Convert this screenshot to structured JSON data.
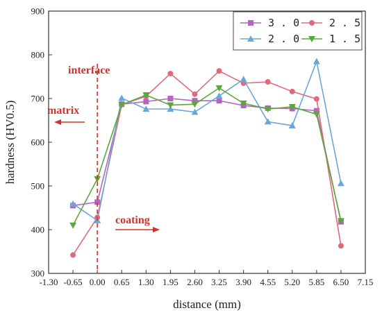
{
  "chart_data": {
    "type": "line",
    "xlabel": "distance (mm)",
    "ylabel": "hardness (HV0.5)",
    "xlim": [
      -1.3,
      7.15
    ],
    "ylim": [
      300,
      900
    ],
    "xticks": [
      -1.3,
      -0.65,
      0.0,
      0.65,
      1.3,
      1.95,
      2.6,
      3.25,
      3.9,
      4.55,
      5.2,
      5.85,
      6.5,
      7.15
    ],
    "xtick_labels": [
      "-1.30",
      "-0.65",
      "0.00",
      "0.65",
      "1.30",
      "1.95",
      "2.60",
      "3.25",
      "3.90",
      "4.55",
      "5.20",
      "5.85",
      "6.50",
      "7.15"
    ],
    "yticks": [
      300,
      400,
      500,
      600,
      700,
      800,
      900
    ],
    "ytick_labels": [
      "300",
      "400",
      "500",
      "600",
      "700",
      "800",
      "900"
    ],
    "x": [
      -0.65,
      0.0,
      0.65,
      1.3,
      1.95,
      2.6,
      3.25,
      3.9,
      4.55,
      5.2,
      5.85,
      6.5
    ],
    "series": [
      {
        "name": "3.0",
        "color": "#b565c0",
        "marker": "square",
        "values": [
          455,
          463,
          687,
          693,
          700,
          695,
          695,
          684,
          678,
          677,
          672,
          418
        ]
      },
      {
        "name": "2.5",
        "color": "#e0697d",
        "marker": "circle",
        "values": [
          342,
          428,
          686,
          705,
          757,
          710,
          763,
          735,
          738,
          716,
          699,
          363
        ]
      },
      {
        "name": "2.0",
        "color": "#6aa7d8",
        "marker": "triangle-up",
        "values": [
          459,
          421,
          701,
          676,
          676,
          669,
          706,
          744,
          647,
          638,
          785,
          506
        ]
      },
      {
        "name": "1.5",
        "color": "#5aa83c",
        "marker": "triangle-down",
        "values": [
          410,
          516,
          686,
          708,
          685,
          687,
          724,
          689,
          676,
          681,
          664,
          420
        ]
      }
    ],
    "legend_placement": "top-right",
    "legend_columns": 2,
    "grid": false,
    "annotations": {
      "interface": {
        "text": "interface",
        "x": 0.0,
        "color": "#d0312d",
        "style": "dashed vertical line"
      },
      "matrix": {
        "text": "matrix",
        "color": "#d0312d",
        "arrow": "left"
      },
      "coating": {
        "text": "coating",
        "color": "#d0312d",
        "arrow": "right"
      }
    }
  }
}
